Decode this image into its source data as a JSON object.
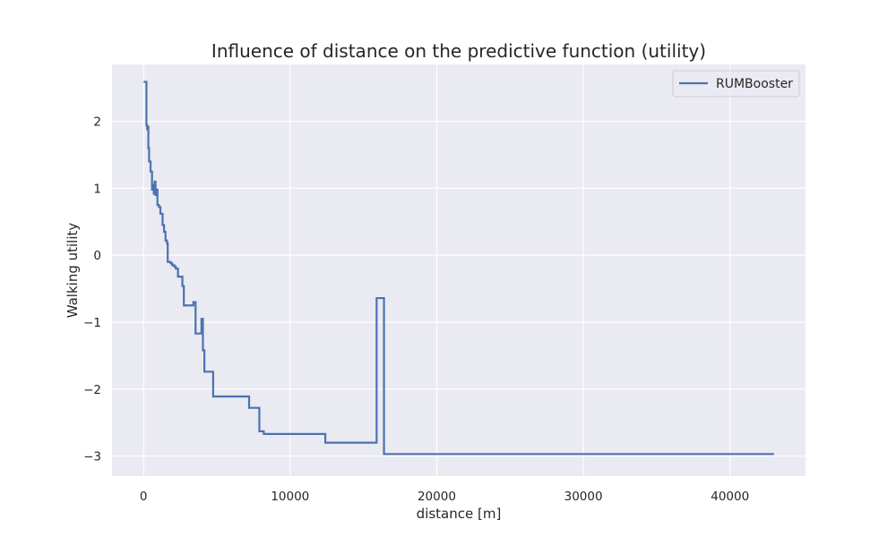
{
  "colors": {
    "plot_background": "#eaeaf2",
    "grid": "#ffffff",
    "series_line": "#4c72b0",
    "text": "#262626"
  },
  "chart_data": {
    "type": "line",
    "title": "Influence of distance on the predictive function (utility)",
    "xlabel": "distance [m]",
    "ylabel": "Walking utility",
    "xlim": [
      -2150,
      45150
    ],
    "ylim": [
      -3.3,
      2.85
    ],
    "x_ticks": [
      0,
      10000,
      20000,
      30000,
      40000
    ],
    "x_tick_labels": [
      "0",
      "10000",
      "20000",
      "30000",
      "40000"
    ],
    "y_ticks": [
      -3,
      -2,
      -1,
      0,
      1,
      2
    ],
    "y_tick_labels": [
      "−3",
      "−2",
      "−1",
      "0",
      "1",
      "2"
    ],
    "grid": true,
    "legend_position": "top-right",
    "series": [
      {
        "name": "RUMBooster",
        "step": "post",
        "points": [
          [
            0,
            2.59
          ],
          [
            200,
            1.94
          ],
          [
            250,
            1.88
          ],
          [
            300,
            1.92
          ],
          [
            330,
            1.6
          ],
          [
            380,
            1.4
          ],
          [
            480,
            1.25
          ],
          [
            580,
            0.98
          ],
          [
            650,
            1.05
          ],
          [
            700,
            0.92
          ],
          [
            760,
            1.1
          ],
          [
            820,
            0.9
          ],
          [
            880,
            0.98
          ],
          [
            950,
            0.75
          ],
          [
            1050,
            0.72
          ],
          [
            1150,
            0.62
          ],
          [
            1300,
            0.45
          ],
          [
            1400,
            0.35
          ],
          [
            1500,
            0.22
          ],
          [
            1600,
            0.18
          ],
          [
            1650,
            -0.1
          ],
          [
            1850,
            -0.12
          ],
          [
            1950,
            -0.15
          ],
          [
            2100,
            -0.17
          ],
          [
            2200,
            -0.2
          ],
          [
            2350,
            -0.32
          ],
          [
            2650,
            -0.46
          ],
          [
            2750,
            -0.75
          ],
          [
            3300,
            -0.75
          ],
          [
            3400,
            -0.7
          ],
          [
            3550,
            -1.17
          ],
          [
            3950,
            -0.95
          ],
          [
            4050,
            -1.42
          ],
          [
            4150,
            -1.74
          ],
          [
            4750,
            -2.11
          ],
          [
            7200,
            -2.28
          ],
          [
            7900,
            -2.63
          ],
          [
            8200,
            -2.67
          ],
          [
            12400,
            -2.8
          ],
          [
            15900,
            -0.64
          ],
          [
            16400,
            -2.97
          ],
          [
            43000,
            -2.97
          ]
        ]
      }
    ]
  }
}
